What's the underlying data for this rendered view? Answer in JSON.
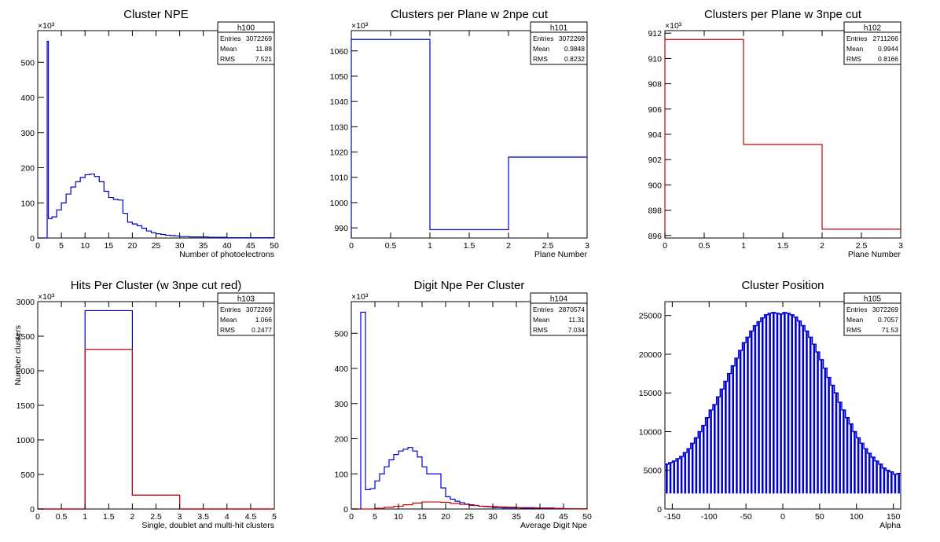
{
  "chart_data": [
    {
      "type": "histogram",
      "title": "Cluster NPE",
      "xlabel": "Number of photoelectrons",
      "ylabel": "",
      "exponent_label": "×10³",
      "xlim": [
        0,
        50
      ],
      "ylim": [
        0,
        590
      ],
      "xticks": [
        0,
        5,
        10,
        15,
        20,
        25,
        30,
        35,
        40,
        45,
        50
      ],
      "yticks": [
        0,
        100,
        200,
        300,
        400,
        500
      ],
      "stats": {
        "name": "h100",
        "entries": "3072269",
        "mean": "11.88",
        "rms": "7.521",
        "labels": [
          "Entries",
          "Mean",
          "RMS"
        ]
      },
      "series": [
        {
          "color": "#0000cc",
          "step_x": [
            0,
            2,
            2.25,
            3,
            4,
            5,
            6,
            7,
            8,
            9,
            10,
            11,
            12,
            13,
            14,
            15,
            16,
            17,
            18,
            19,
            20,
            21,
            22,
            23,
            24,
            25,
            26,
            27,
            28,
            29,
            30,
            32,
            34,
            36,
            38,
            40,
            45,
            50
          ],
          "values": [
            0,
            560,
            55,
            60,
            80,
            100,
            125,
            145,
            160,
            172,
            180,
            182,
            175,
            160,
            133,
            115,
            110,
            108,
            70,
            45,
            40,
            35,
            28,
            20,
            15,
            12,
            10,
            8,
            7,
            6,
            4,
            3,
            3,
            2,
            2,
            1,
            1
          ]
        }
      ]
    },
    {
      "type": "histogram",
      "title": "Clusters per Plane w 2npe cut",
      "xlabel": "Plane Number",
      "ylabel": "",
      "exponent_label": "×10³",
      "xlim": [
        0,
        3
      ],
      "ylim": [
        986,
        1068
      ],
      "xticks": [
        0,
        0.5,
        1,
        1.5,
        2,
        2.5,
        3
      ],
      "yticks": [
        990,
        1000,
        1010,
        1020,
        1030,
        1040,
        1050,
        1060
      ],
      "stats": {
        "name": "h101",
        "entries": "3072269",
        "mean": "0.9848",
        "rms": "0.8232",
        "labels": [
          "Entries",
          "Mean",
          "RMS"
        ]
      },
      "series": [
        {
          "color": "#0000cc",
          "step_x": [
            0,
            1,
            2,
            3
          ],
          "values": [
            1064.5,
            989.3,
            1018.0
          ]
        }
      ]
    },
    {
      "type": "histogram",
      "title": "Clusters per Plane w 3npe cut",
      "xlabel": "Plane Number",
      "ylabel": "",
      "exponent_label": "×10³",
      "xlim": [
        0,
        3
      ],
      "ylim": [
        895.8,
        912.2
      ],
      "xticks": [
        0,
        0.5,
        1,
        1.5,
        2,
        2.5,
        3
      ],
      "yticks": [
        896,
        898,
        900,
        902,
        904,
        906,
        908,
        910,
        912
      ],
      "stats": {
        "name": "h102",
        "entries": "2711266",
        "mean": "0.9944",
        "rms": "0.8166",
        "labels": [
          "Entries",
          "Mean",
          "RMS"
        ]
      },
      "series": [
        {
          "color": "#cc0000",
          "step_x": [
            0,
            1,
            2,
            3
          ],
          "values": [
            911.5,
            903.2,
            896.5
          ]
        }
      ]
    },
    {
      "type": "histogram",
      "title": "Hits Per Cluster (w 3npe cut red)",
      "xlabel": "Single, doublet and multi-hit clusters",
      "ylabel": "Number clusters",
      "exponent_label": "×10³",
      "xlim": [
        0,
        5
      ],
      "ylim": [
        0,
        3000
      ],
      "xticks": [
        0,
        0.5,
        1,
        1.5,
        2,
        2.5,
        3,
        3.5,
        4,
        4.5,
        5
      ],
      "yticks": [
        0,
        500,
        1000,
        1500,
        2000,
        2500,
        3000
      ],
      "stats": {
        "name": "h103",
        "entries": "3072269",
        "mean": "1.066",
        "rms": "0.2477",
        "labels": [
          "Entries",
          "Mean",
          "RMS"
        ]
      },
      "series": [
        {
          "color": "#0000cc",
          "step_x": [
            0,
            1,
            2,
            3,
            4,
            5
          ],
          "values": [
            0,
            2870,
            200,
            0,
            0
          ]
        },
        {
          "color": "#cc0000",
          "step_x": [
            0,
            1,
            2,
            3,
            4,
            5
          ],
          "values": [
            0,
            2310,
            200,
            0,
            0
          ]
        }
      ]
    },
    {
      "type": "histogram",
      "title": "Digit Npe Per Cluster",
      "xlabel": "Average Digit Npe",
      "ylabel": "",
      "exponent_label": "×10³",
      "xlim": [
        0,
        50
      ],
      "ylim": [
        0,
        590
      ],
      "xticks": [
        0,
        5,
        10,
        15,
        20,
        25,
        30,
        35,
        40,
        45,
        50
      ],
      "yticks": [
        0,
        100,
        200,
        300,
        400,
        500
      ],
      "stats": {
        "name": "h104",
        "entries": "2870574",
        "mean": "11.31",
        "rms": "7.034",
        "labels": [
          "Entries",
          "Mean",
          "RMS"
        ]
      },
      "series": [
        {
          "color": "#0000cc",
          "step_x": [
            0,
            2,
            3,
            4,
            5,
            6,
            7,
            8,
            9,
            10,
            11,
            12,
            13,
            14,
            15,
            16,
            17,
            18,
            19,
            20,
            21,
            22,
            23,
            24,
            25,
            26,
            27,
            28,
            29,
            30,
            32,
            34,
            36,
            38,
            40,
            45,
            50
          ],
          "values": [
            0,
            560,
            55,
            58,
            80,
            100,
            120,
            140,
            155,
            165,
            170,
            175,
            165,
            148,
            120,
            100,
            100,
            100,
            60,
            35,
            28,
            22,
            18,
            14,
            12,
            10,
            8,
            7,
            6,
            4,
            3,
            3,
            2,
            2,
            1,
            1
          ]
        },
        {
          "color": "#cc0000",
          "step_x": [
            0,
            5,
            7,
            9,
            11,
            13,
            15,
            17,
            19,
            21,
            23,
            25,
            27,
            29,
            31,
            33,
            35,
            37,
            39,
            41,
            43,
            45,
            50
          ],
          "values": [
            0,
            2,
            5,
            8,
            12,
            17,
            20,
            20,
            19,
            16,
            13,
            10,
            8,
            7,
            6,
            5,
            4,
            4,
            3,
            3,
            2,
            1
          ]
        }
      ]
    },
    {
      "type": "bar",
      "title": "Cluster Position",
      "xlabel": "Alpha",
      "ylabel": "",
      "exponent_label": "",
      "xlim": [
        -160,
        160
      ],
      "ylim": [
        0,
        26800
      ],
      "xticks": [
        -150,
        -100,
        -50,
        0,
        50,
        100,
        150
      ],
      "yticks": [
        0,
        5000,
        10000,
        15000,
        20000,
        25000
      ],
      "stats": {
        "name": "h105",
        "entries": "3072269",
        "mean": "0.7057",
        "rms": "71.53",
        "labels": [
          "Entries",
          "Mean",
          "RMS"
        ]
      },
      "series": [
        {
          "color": "#0000cc",
          "bar_low": [
            2000,
            2000,
            2000,
            2000,
            2000,
            2000,
            2000,
            2000,
            2000,
            2000,
            2000,
            2000,
            2000,
            2000,
            2000,
            2000,
            2000,
            2000,
            2000,
            2000,
            2000,
            2000,
            2000,
            2000,
            2000,
            2000,
            2000,
            2000,
            2000,
            2000,
            2000,
            2000,
            2000,
            2000,
            2000,
            2000,
            2000,
            2000,
            2000,
            2000,
            2000,
            2000,
            2000,
            2000,
            2000,
            2000,
            2000,
            2000,
            2000,
            2000,
            2000,
            2000,
            2000,
            2000,
            2000,
            2000,
            2000,
            2000,
            2000,
            2000,
            2000,
            2000,
            2000,
            2000
          ],
          "x": [
            -157.5,
            -152.5,
            -147.5,
            -142.5,
            -137.5,
            -132.5,
            -127.5,
            -122.5,
            -117.5,
            -112.5,
            -107.5,
            -102.5,
            -97.5,
            -92.5,
            -87.5,
            -82.5,
            -77.5,
            -72.5,
            -67.5,
            -62.5,
            -57.5,
            -52.5,
            -47.5,
            -42.5,
            -37.5,
            -32.5,
            -27.5,
            -22.5,
            -17.5,
            -12.5,
            -7.5,
            -2.5,
            2.5,
            7.5,
            12.5,
            17.5,
            22.5,
            27.5,
            32.5,
            37.5,
            42.5,
            47.5,
            52.5,
            57.5,
            62.5,
            67.5,
            72.5,
            77.5,
            82.5,
            87.5,
            92.5,
            97.5,
            102.5,
            107.5,
            112.5,
            117.5,
            122.5,
            127.5,
            132.5,
            137.5,
            142.5,
            147.5,
            152.5,
            157.5
          ],
          "values": [
            5800,
            6000,
            6200,
            6500,
            6800,
            7300,
            7800,
            8500,
            9200,
            10000,
            10800,
            11800,
            12800,
            13500,
            14500,
            15500,
            16500,
            17500,
            18500,
            19500,
            20500,
            21500,
            22200,
            23000,
            23700,
            24200,
            24700,
            25100,
            25300,
            25400,
            25300,
            25200,
            25400,
            25300,
            25100,
            24800,
            24300,
            23700,
            23000,
            22200,
            21300,
            20300,
            19300,
            18200,
            17000,
            16000,
            15000,
            13800,
            12800,
            11800,
            11000,
            10000,
            9200,
            8500,
            7800,
            7200,
            6700,
            6200,
            5800,
            5300,
            5000,
            4800,
            4500,
            4600
          ]
        }
      ]
    }
  ]
}
